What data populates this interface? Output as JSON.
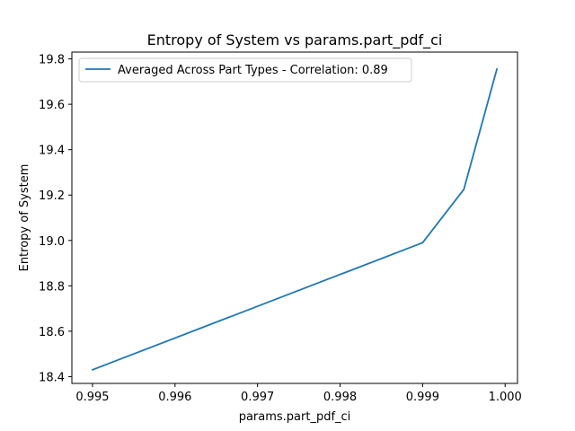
{
  "chart_data": {
    "type": "line",
    "title": "Entropy of System vs params.part_pdf_ci",
    "xlabel": "params.part_pdf_ci",
    "ylabel": "Entropy of System",
    "xlim": [
      0.99475,
      1.00015
    ],
    "ylim": [
      18.37,
      19.83
    ],
    "xticks": [
      0.995,
      0.996,
      0.997,
      0.998,
      0.999,
      1.0
    ],
    "xtick_labels": [
      "0.995",
      "0.996",
      "0.997",
      "0.998",
      "0.999",
      "1.000"
    ],
    "yticks": [
      18.4,
      18.6,
      18.8,
      19.0,
      19.2,
      19.4,
      19.6,
      19.8
    ],
    "ytick_labels": [
      "18.4",
      "18.6",
      "18.8",
      "19.0",
      "19.2",
      "19.4",
      "19.6",
      "19.8"
    ],
    "grid": false,
    "legend_position": "top-left",
    "series": [
      {
        "name": "Averaged Across Part Types - Correlation: 0.89",
        "color": "#1f77b4",
        "x": [
          0.995,
          0.999,
          0.9995,
          0.9999
        ],
        "y": [
          18.43,
          18.99,
          19.225,
          19.755
        ]
      }
    ]
  }
}
